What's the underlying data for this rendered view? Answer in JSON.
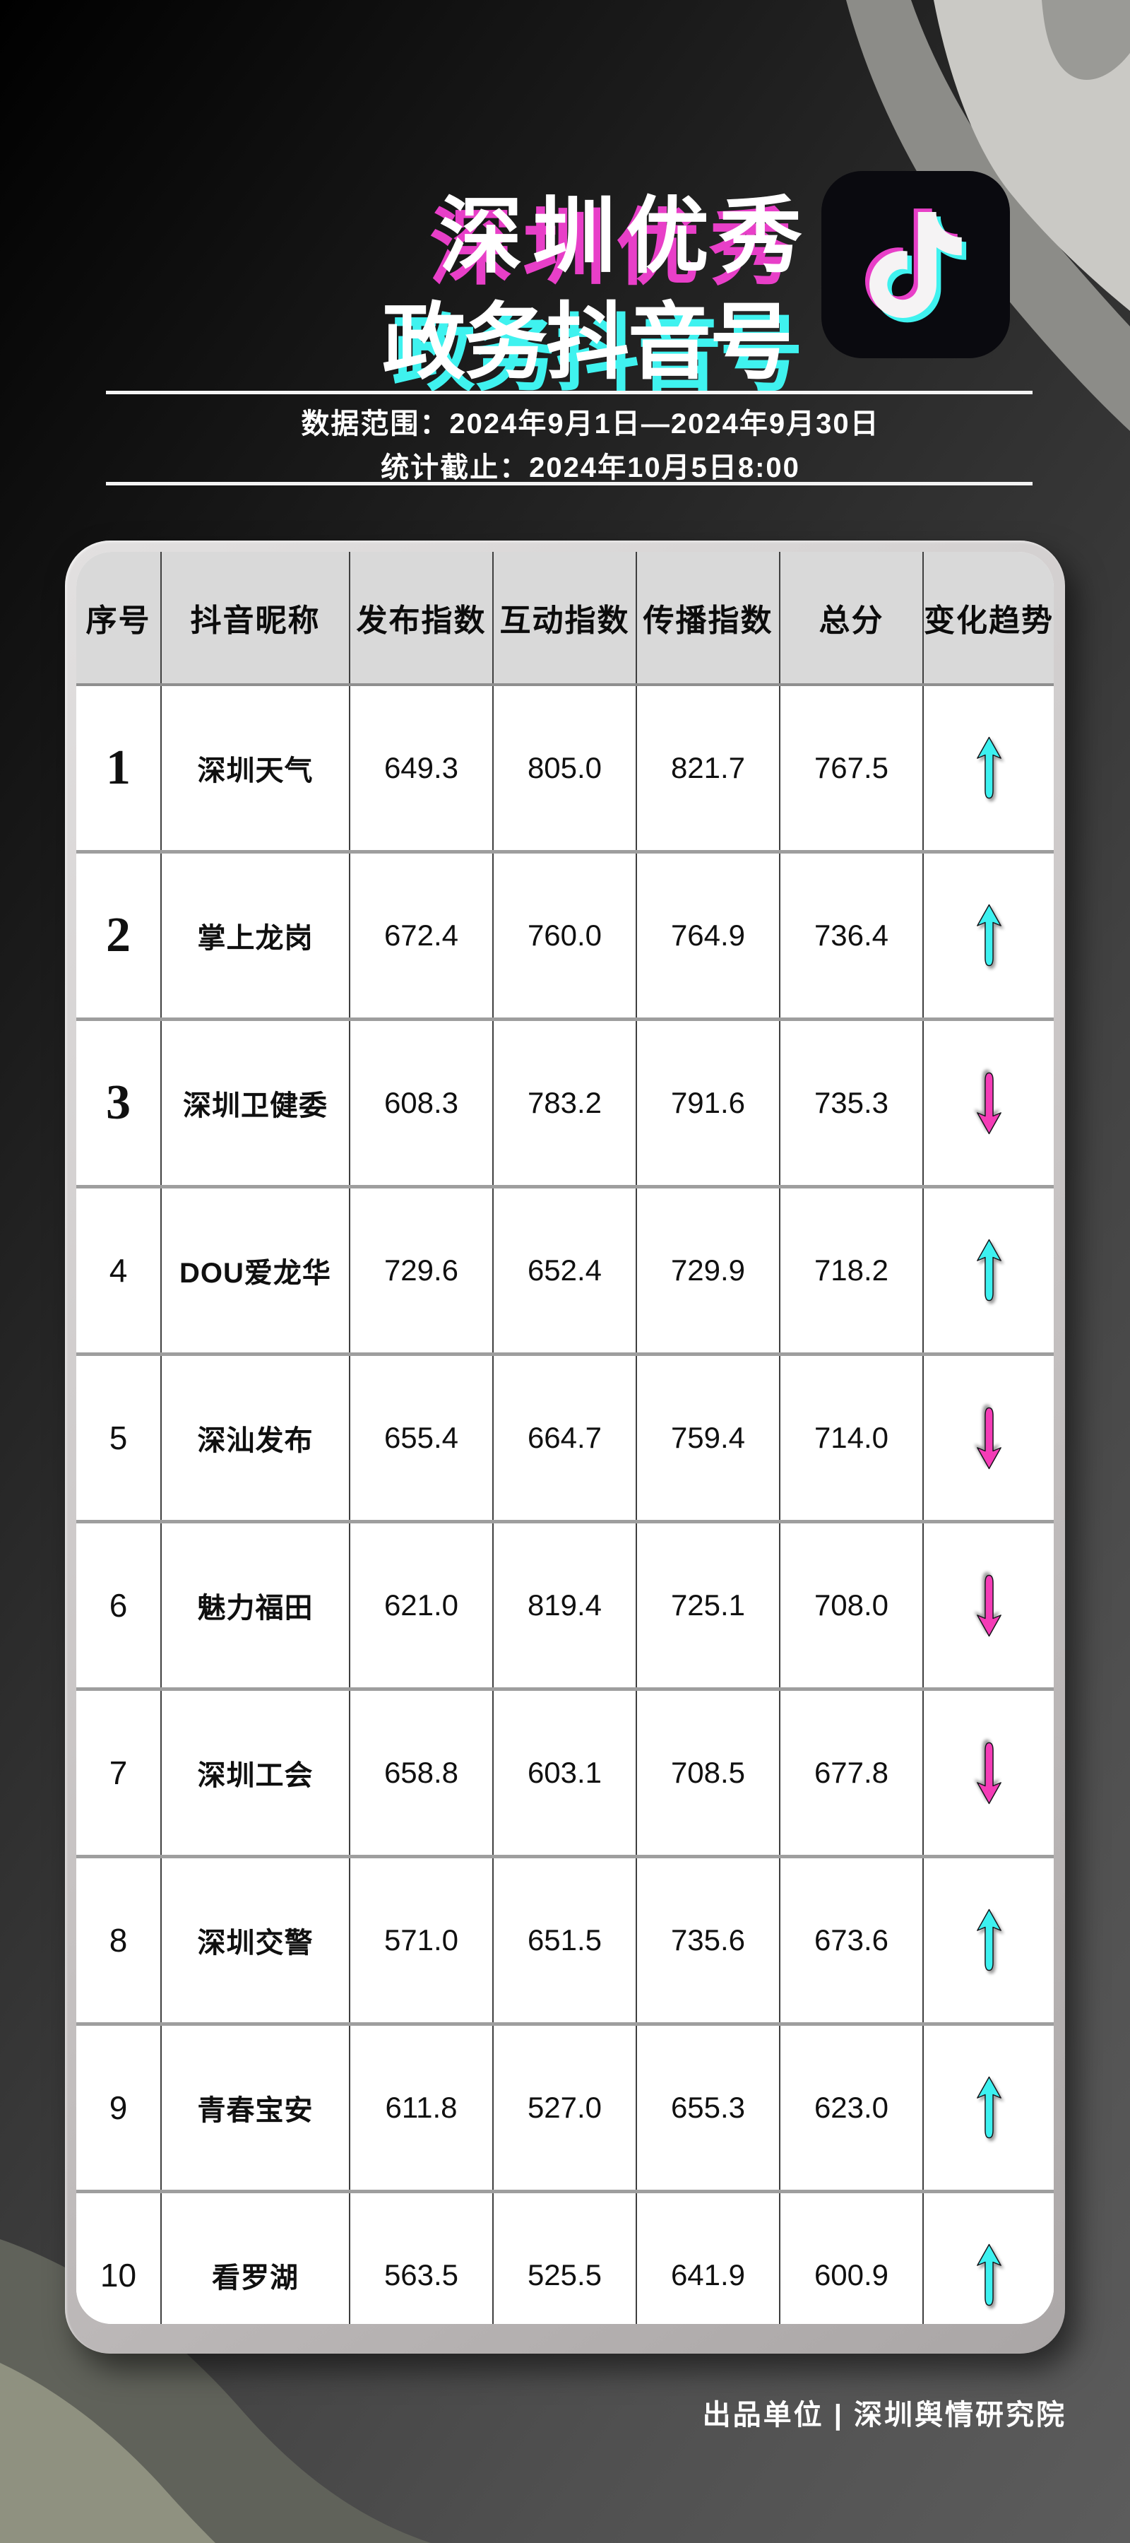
{
  "title": {
    "line1": "深圳优秀",
    "line2": "政务抖音号"
  },
  "subtitle": {
    "data_range": "数据范围：2024年9月1日—2024年9月30日",
    "cutoff": "统计截止：2024年10月5日8:00"
  },
  "logo": {
    "name": "douyin-app-icon"
  },
  "table": {
    "headers": [
      "序号",
      "抖音昵称",
      "发布指数",
      "互动指数",
      "传播指数",
      "总分",
      "变化趋势"
    ],
    "rows": [
      {
        "rank": "1",
        "name": "深圳天气",
        "publish": "649.3",
        "interact": "805.0",
        "spread": "821.7",
        "total": "767.5",
        "trend": "up"
      },
      {
        "rank": "2",
        "name": "掌上龙岗",
        "publish": "672.4",
        "interact": "760.0",
        "spread": "764.9",
        "total": "736.4",
        "trend": "up"
      },
      {
        "rank": "3",
        "name": "深圳卫健委",
        "publish": "608.3",
        "interact": "783.2",
        "spread": "791.6",
        "total": "735.3",
        "trend": "down"
      },
      {
        "rank": "4",
        "name": "DOU爱龙华",
        "publish": "729.6",
        "interact": "652.4",
        "spread": "729.9",
        "total": "718.2",
        "trend": "up"
      },
      {
        "rank": "5",
        "name": "深汕发布",
        "publish": "655.4",
        "interact": "664.7",
        "spread": "759.4",
        "total": "714.0",
        "trend": "down"
      },
      {
        "rank": "6",
        "name": "魅力福田",
        "publish": "621.0",
        "interact": "819.4",
        "spread": "725.1",
        "total": "708.0",
        "trend": "down"
      },
      {
        "rank": "7",
        "name": "深圳工会",
        "publish": "658.8",
        "interact": "603.1",
        "spread": "708.5",
        "total": "677.8",
        "trend": "down"
      },
      {
        "rank": "8",
        "name": "深圳交警",
        "publish": "571.0",
        "interact": "651.5",
        "spread": "735.6",
        "total": "673.6",
        "trend": "up"
      },
      {
        "rank": "9",
        "name": "青春宝安",
        "publish": "611.8",
        "interact": "527.0",
        "spread": "655.3",
        "total": "623.0",
        "trend": "up"
      },
      {
        "rank": "10",
        "name": "看罗湖",
        "publish": "563.5",
        "interact": "525.5",
        "spread": "641.9",
        "total": "600.9",
        "trend": "up"
      }
    ]
  },
  "footer": {
    "credit": "出品单位 | 深圳舆情研究院"
  },
  "colors": {
    "cyan": "#3DF1F0",
    "magenta": "#F43CB6",
    "title_shadow_magenta": "#E83FC8",
    "title_shadow_cyan": "#3FF2EF"
  },
  "chart_data": {
    "type": "table",
    "title": "深圳优秀政务抖音号",
    "data_range": "2024年9月1日—2024年9月30日",
    "cutoff": "2024年10月5日8:00",
    "columns": [
      "序号",
      "抖音昵称",
      "发布指数",
      "互动指数",
      "传播指数",
      "总分",
      "变化趋势"
    ],
    "rows": [
      [
        1,
        "深圳天气",
        649.3,
        805.0,
        821.7,
        767.5,
        "up"
      ],
      [
        2,
        "掌上龙岗",
        672.4,
        760.0,
        764.9,
        736.4,
        "up"
      ],
      [
        3,
        "深圳卫健委",
        608.3,
        783.2,
        791.6,
        735.3,
        "down"
      ],
      [
        4,
        "DOU爱龙华",
        729.6,
        652.4,
        729.9,
        718.2,
        "up"
      ],
      [
        5,
        "深汕发布",
        655.4,
        664.7,
        759.4,
        714.0,
        "down"
      ],
      [
        6,
        "魅力福田",
        621.0,
        819.4,
        725.1,
        708.0,
        "down"
      ],
      [
        7,
        "深圳工会",
        658.8,
        603.1,
        708.5,
        677.8,
        "down"
      ],
      [
        8,
        "深圳交警",
        571.0,
        651.5,
        735.6,
        673.6,
        "up"
      ],
      [
        9,
        "青春宝安",
        611.8,
        527.0,
        655.3,
        623.0,
        "up"
      ],
      [
        10,
        "看罗湖",
        563.5,
        525.5,
        641.9,
        600.9,
        "up"
      ]
    ]
  }
}
